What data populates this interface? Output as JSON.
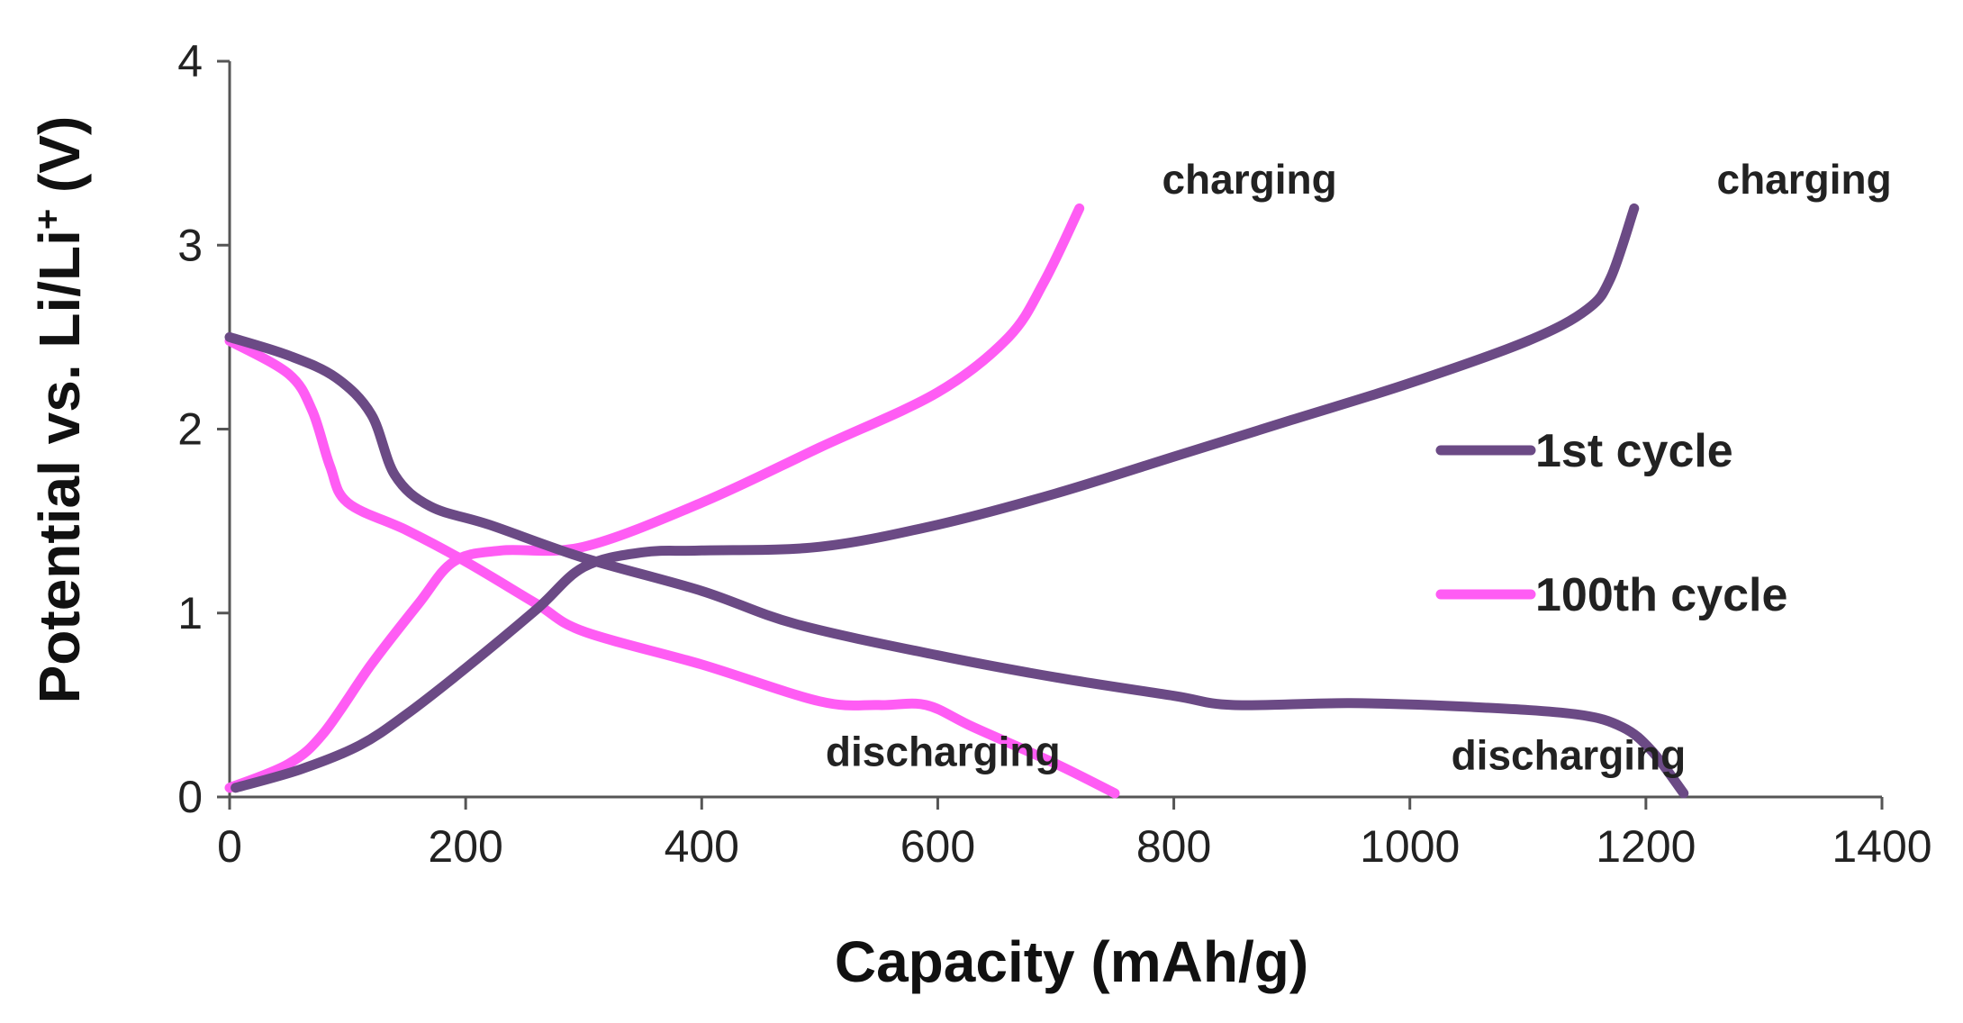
{
  "chart_data": {
    "type": "line",
    "xlabel": "Capacity (mAh/g)",
    "ylabel": {
      "prefix": "Potential vs. Li/Li",
      "superscript": "+",
      "suffix": " (V)"
    },
    "xlim": [
      0,
      1400
    ],
    "ylim": [
      0,
      4
    ],
    "x_ticks": [
      "0",
      "200",
      "400",
      "600",
      "800",
      "1000",
      "1200",
      "1400"
    ],
    "y_ticks": [
      "0",
      "1",
      "2",
      "3",
      "4"
    ],
    "grid": false,
    "legend_position": "right",
    "colors": {
      "cycle_1": "#6b4a85",
      "cycle_100": "#ff5cf4"
    },
    "series": [
      {
        "name": "1st cycle",
        "color": "#6b4a85",
        "segments": {
          "discharge": [
            [
              0,
              2.5
            ],
            [
              50,
              2.4
            ],
            [
              90,
              2.28
            ],
            [
              120,
              2.08
            ],
            [
              140,
              1.75
            ],
            [
              170,
              1.58
            ],
            [
              220,
              1.48
            ],
            [
              300,
              1.3
            ],
            [
              400,
              1.12
            ],
            [
              480,
              0.94
            ],
            [
              600,
              0.77
            ],
            [
              700,
              0.65
            ],
            [
              800,
              0.55
            ],
            [
              850,
              0.5
            ],
            [
              950,
              0.51
            ],
            [
              1050,
              0.49
            ],
            [
              1140,
              0.45
            ],
            [
              1180,
              0.38
            ],
            [
              1205,
              0.25
            ],
            [
              1232,
              0.02
            ]
          ],
          "charge": [
            [
              5,
              0.05
            ],
            [
              60,
              0.15
            ],
            [
              110,
              0.28
            ],
            [
              150,
              0.45
            ],
            [
              200,
              0.7
            ],
            [
              260,
              1.02
            ],
            [
              300,
              1.25
            ],
            [
              350,
              1.33
            ],
            [
              400,
              1.34
            ],
            [
              500,
              1.36
            ],
            [
              600,
              1.48
            ],
            [
              700,
              1.65
            ],
            [
              800,
              1.85
            ],
            [
              900,
              2.05
            ],
            [
              1000,
              2.25
            ],
            [
              1100,
              2.48
            ],
            [
              1150,
              2.65
            ],
            [
              1170,
              2.82
            ],
            [
              1190,
              3.2
            ]
          ]
        }
      },
      {
        "name": "100th cycle",
        "color": "#ff5cf4",
        "segments": {
          "discharge": [
            [
              0,
              2.48
            ],
            [
              50,
              2.3
            ],
            [
              70,
              2.1
            ],
            [
              85,
              1.8
            ],
            [
              100,
              1.6
            ],
            [
              150,
              1.45
            ],
            [
              200,
              1.28
            ],
            [
              260,
              1.05
            ],
            [
              300,
              0.9
            ],
            [
              400,
              0.72
            ],
            [
              500,
              0.52
            ],
            [
              550,
              0.5
            ],
            [
              590,
              0.5
            ],
            [
              630,
              0.38
            ],
            [
              700,
              0.18
            ],
            [
              750,
              0.02
            ]
          ],
          "charge": [
            [
              0,
              0.05
            ],
            [
              50,
              0.18
            ],
            [
              80,
              0.35
            ],
            [
              120,
              0.72
            ],
            [
              160,
              1.05
            ],
            [
              190,
              1.28
            ],
            [
              230,
              1.34
            ],
            [
              300,
              1.36
            ],
            [
              400,
              1.6
            ],
            [
              500,
              1.9
            ],
            [
              600,
              2.2
            ],
            [
              660,
              2.5
            ],
            [
              690,
              2.8
            ],
            [
              720,
              3.2
            ]
          ]
        }
      }
    ],
    "annotations": [
      {
        "text": "charging",
        "x": 790,
        "y": 3.28
      },
      {
        "text": "charging",
        "x": 1260,
        "y": 3.28
      },
      {
        "text": "discharging",
        "x": 505,
        "y": 0.17
      },
      {
        "text": "discharging",
        "x": 1035,
        "y": 0.15
      }
    ]
  }
}
